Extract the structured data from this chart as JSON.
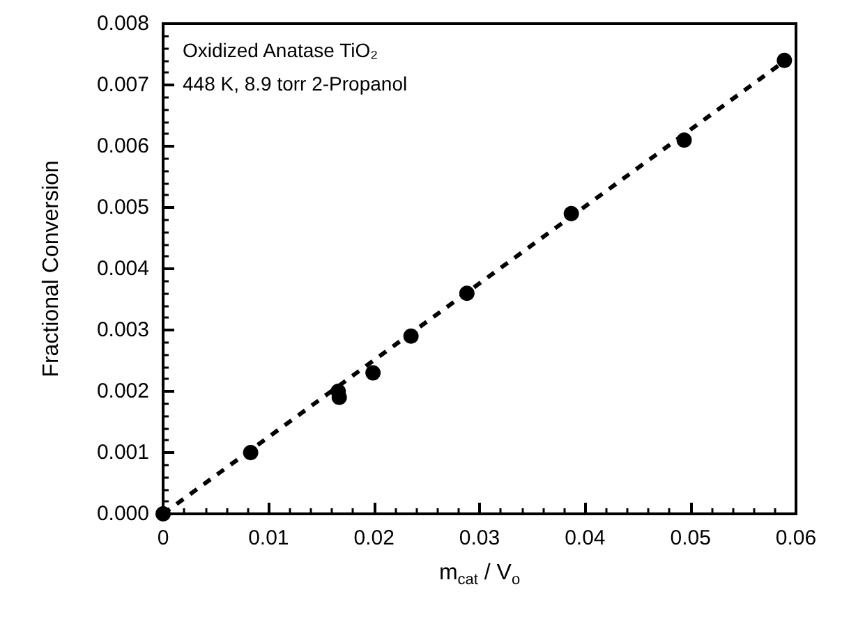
{
  "chart_data": {
    "type": "scatter",
    "xlabel": "m$_{cat}$ / V$_{o}$",
    "ylabel": "Fractional Conversion",
    "annotations": [
      "Oxidized Anatase TiO₂",
      "448 K, 8.9 torr 2-Propanol"
    ],
    "series": [
      {
        "color": "#000000",
        "marker": "circle",
        "x": [
          0,
          0.0083,
          0.0166,
          0.0167,
          0.0199,
          0.0235,
          0.0288,
          0.0387,
          0.0494,
          0.0589
        ],
        "values": [
          0,
          0.001,
          0.002,
          0.0019,
          0.0023,
          0.0029,
          0.0036,
          0.0049,
          0.0061,
          0.0074
        ]
      },
      {
        "type": "line",
        "color": "#000000",
        "line_style": "dashed",
        "marker": "none",
        "x": [
          0,
          0.059
        ],
        "values": [
          0,
          0.0074
        ]
      }
    ],
    "xlim": [
      0,
      0.06
    ],
    "xticks": [
      0,
      0.01,
      0.02,
      0.03,
      0.04,
      0.05,
      0.06
    ],
    "ylim": [
      0,
      0.008
    ],
    "yticks": [
      {
        "value": 0,
        "label": "0.000"
      },
      {
        "value": 0.001,
        "label": "0.001"
      },
      {
        "value": 0.002,
        "label": "0.002"
      },
      {
        "value": 0.003,
        "label": "0.003"
      },
      {
        "value": 0.004,
        "label": "0.004"
      },
      {
        "value": 0.005,
        "label": "0.005"
      },
      {
        "value": 0.006,
        "label": "0.006"
      },
      {
        "value": 0.007,
        "label": "0.007"
      },
      {
        "value": 0.008,
        "label": "0.008"
      }
    ],
    "grid": false
  }
}
